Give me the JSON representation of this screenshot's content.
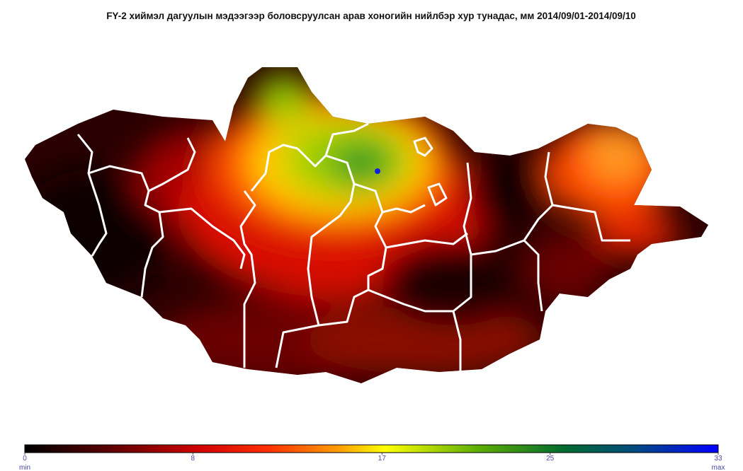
{
  "title": "FY-2  хиймэл дагуулын мэдээгээр боловсруулсан арав хоногийн нийлбэр хур тунадас, мм 2014/09/01-2014/09/10",
  "colorbar": {
    "range": [
      0,
      33
    ],
    "ticks": [
      0,
      8,
      17,
      25,
      33
    ],
    "min_label": "min",
    "max_label": "max"
  }
}
